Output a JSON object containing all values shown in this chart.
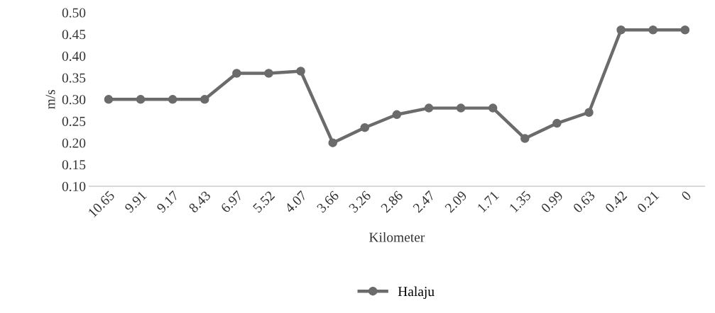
{
  "chart_data": {
    "type": "line",
    "xlabel": "Kilometer",
    "ylabel": "m/s",
    "categories": [
      "10.65",
      "9.91",
      "9.17",
      "8.43",
      "6.97",
      "5.52",
      "4.07",
      "3.66",
      "3.26",
      "2.86",
      "2.47",
      "2.09",
      "1.71",
      "1.35",
      "0.99",
      "0.63",
      "0.42",
      "0.21",
      "0"
    ],
    "series": [
      {
        "name": "Halaju",
        "color": "#6b6b6b",
        "values": [
          0.3,
          0.3,
          0.3,
          0.3,
          0.36,
          0.36,
          0.365,
          0.2,
          0.235,
          0.265,
          0.28,
          0.28,
          0.28,
          0.21,
          0.245,
          0.27,
          0.46,
          0.46,
          0.46
        ]
      }
    ],
    "ylim": [
      0.1,
      0.5
    ],
    "yticks": [
      {
        "value": 0.1,
        "label": "0.10"
      },
      {
        "value": 0.15,
        "label": "0.15"
      },
      {
        "value": 0.2,
        "label": "0.20"
      },
      {
        "value": 0.25,
        "label": "0.25"
      },
      {
        "value": 0.3,
        "label": "0.30"
      },
      {
        "value": 0.35,
        "label": "0.35"
      },
      {
        "value": 0.4,
        "label": "0.40"
      },
      {
        "value": 0.45,
        "label": "0.45"
      },
      {
        "value": 0.5,
        "label": "0.50"
      }
    ],
    "grid": false,
    "legend": "bottom",
    "marker": "circle",
    "line_style": "solid"
  }
}
